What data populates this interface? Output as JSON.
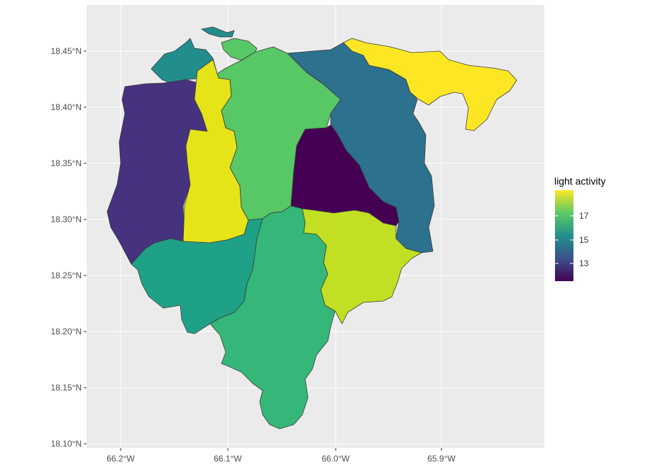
{
  "chart_data": {
    "type": "choropleth",
    "legend": {
      "title": "light activity",
      "ticks": [
        17,
        15,
        13
      ],
      "range": [
        12,
        19
      ],
      "colors": [
        "#440154",
        "#3b528b",
        "#21908d",
        "#5dc963",
        "#fde725"
      ],
      "placement": "right"
    },
    "axes": {
      "x_ticks": [
        "66.2°W",
        "66.1°W",
        "66.0°W",
        "65.9°W"
      ],
      "y_ticks": [
        "18.45°N",
        "18.40°N",
        "18.35°N",
        "18.30°N",
        "18.25°N",
        "18.20°N",
        "18.15°N",
        "18.10°N"
      ],
      "xlim": [
        -66.23,
        -65.81
      ],
      "ylim": [
        18.095,
        18.485
      ],
      "grid": true
    },
    "regions": [
      {
        "id": "west-strip",
        "value": 12.8,
        "color": "#46327e"
      },
      {
        "id": "northwest-coast",
        "value": 15.0,
        "color": "#218e8d"
      },
      {
        "id": "west-central",
        "value": 18.6,
        "color": "#e5e419"
      },
      {
        "id": "north-central",
        "value": 16.8,
        "color": "#58c765"
      },
      {
        "id": "center",
        "value": 12.0,
        "color": "#440154"
      },
      {
        "id": "northeast",
        "value": 14.3,
        "color": "#2c718e"
      },
      {
        "id": "far-northeast",
        "value": 19.0,
        "color": "#fde725"
      },
      {
        "id": "southwest",
        "value": 15.8,
        "color": "#1fa187"
      },
      {
        "id": "south-central",
        "value": 16.2,
        "color": "#35b779"
      },
      {
        "id": "southeast",
        "value": 18.0,
        "color": "#c2df23"
      }
    ]
  }
}
